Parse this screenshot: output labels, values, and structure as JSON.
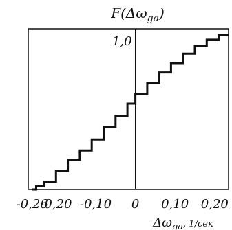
{
  "chart_data": {
    "type": "line",
    "step": true,
    "title": "F(Δω",
    "title_subscript": "ga",
    "title_close": ")",
    "xlabel": "Δω",
    "xlabel_subscript": "ga",
    "xlabel_unit": ", 1/сек",
    "xlim": [
      -0.27,
      0.235
    ],
    "ylim": [
      0,
      1.03
    ],
    "x_ticks": [
      {
        "value": -0.26,
        "label": "-0,26"
      },
      {
        "value": -0.2,
        "label": "-0,20"
      },
      {
        "value": -0.1,
        "label": "-0,10"
      },
      {
        "value": 0.0,
        "label": "0"
      },
      {
        "value": 0.1,
        "label": "0,10"
      },
      {
        "value": 0.2,
        "label": "0,20"
      }
    ],
    "y_ticks": [
      {
        "value": 1.0,
        "label": "1,0"
      }
    ],
    "grid": false,
    "series": [
      {
        "x": [
          -0.26,
          -0.25,
          -0.25,
          -0.23,
          -0.23,
          -0.2,
          -0.2,
          -0.17,
          -0.17,
          -0.14,
          -0.14,
          -0.11,
          -0.11,
          -0.08,
          -0.08,
          -0.05,
          -0.05,
          -0.02,
          -0.02,
          0.0,
          0.0,
          0.03,
          0.03,
          0.06,
          0.06,
          0.09,
          0.09,
          0.12,
          0.12,
          0.15,
          0.15,
          0.18,
          0.18,
          0.21,
          0.21,
          0.235
        ],
        "y": [
          0.0,
          0.0,
          0.02,
          0.02,
          0.05,
          0.05,
          0.12,
          0.12,
          0.19,
          0.19,
          0.25,
          0.25,
          0.32,
          0.32,
          0.4,
          0.4,
          0.47,
          0.47,
          0.55,
          0.55,
          0.61,
          0.61,
          0.68,
          0.68,
          0.75,
          0.75,
          0.81,
          0.81,
          0.87,
          0.87,
          0.92,
          0.92,
          0.96,
          0.96,
          0.99,
          0.99
        ]
      }
    ]
  }
}
